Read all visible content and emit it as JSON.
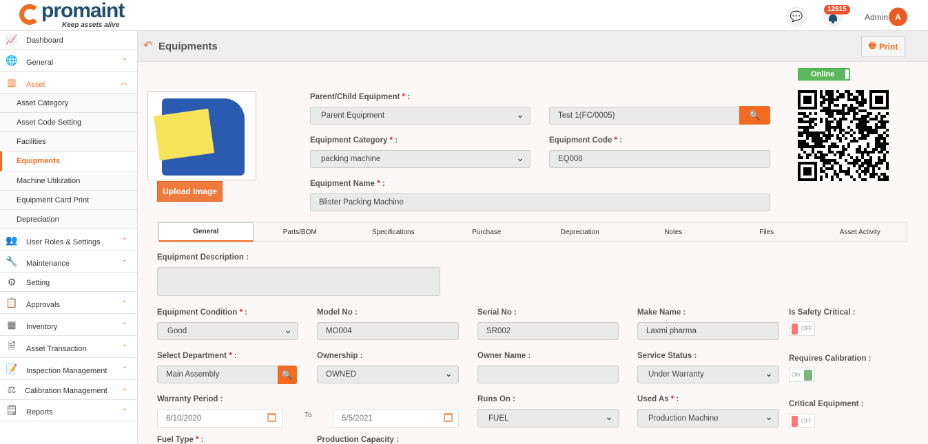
{
  "header": {
    "logo_text": "promaint",
    "logo_tagline": "Keep assets alive",
    "notification_count": "12615",
    "user_name": "Admin",
    "avatar_initial": "A"
  },
  "sidebar": {
    "items": [
      {
        "label": "Dashboard",
        "icon": "chart-icon"
      },
      {
        "label": "General",
        "icon": "globe-icon"
      },
      {
        "label": "Asset",
        "icon": "books-icon",
        "active": true
      },
      {
        "label": "User Roles & Settings",
        "icon": "users-gear-icon"
      },
      {
        "label": "Maintenance",
        "icon": "wrench-icon"
      },
      {
        "label": "Setting",
        "icon": "gear-icon"
      },
      {
        "label": "Approvals",
        "icon": "approval-icon"
      },
      {
        "label": "Inventory",
        "icon": "inventory-icon"
      },
      {
        "label": "Asset Transaction",
        "icon": "transaction-icon"
      },
      {
        "label": "Inspection Management",
        "icon": "inspection-icon"
      },
      {
        "label": "Calibration Management",
        "icon": "scale-icon"
      },
      {
        "label": "Reports",
        "icon": "report-icon"
      }
    ],
    "asset_subitems": [
      "Asset Category",
      "Asset Code Setting",
      "Facilities",
      "Equipments",
      "Machine Utilization",
      "Equipment Card Print",
      "Depreciation"
    ]
  },
  "page": {
    "title": "Equipments",
    "print_label": "Print",
    "status": "Online",
    "upload_label": "Upload Image"
  },
  "form": {
    "parent_child": {
      "label": "Parent/Child Equipment",
      "value": "Parent Equipment"
    },
    "parent_ref": {
      "value": "Test 1(FC/0005)"
    },
    "category": {
      "label": "Equipment Category",
      "value": "packing machine"
    },
    "code": {
      "label": "Equipment Code",
      "value": "EQ008"
    },
    "name": {
      "label": "Equipment Name",
      "value": "Blister Packing Machine"
    }
  },
  "tabs": [
    "General",
    "Parts/BOM",
    "Specifications",
    "Purchase",
    "Depreciation",
    "Notes",
    "Files",
    "Asset Activity"
  ],
  "general": {
    "description": {
      "label": "Equipment Description :",
      "value": ""
    },
    "condition": {
      "label": "Equipment Condition",
      "value": "Good"
    },
    "model": {
      "label": "Model No :",
      "value": "MO004"
    },
    "serial": {
      "label": "Serial No :",
      "value": "SR002"
    },
    "make": {
      "label": "Make Name :",
      "value": "Laxmi pharma"
    },
    "safety": {
      "label": "Is Safety Critical :",
      "state": "OFF"
    },
    "department": {
      "label": "Select Department",
      "value": "Main Assembly"
    },
    "ownership": {
      "label": "Ownership :",
      "value": "OWNED"
    },
    "owner_name": {
      "label": "Owner Name :",
      "value": ""
    },
    "service_status": {
      "label": "Service Status :",
      "value": "Under Warranty"
    },
    "calibration": {
      "label": "Requires Calibration :",
      "state": "ON"
    },
    "warranty": {
      "label": "Warranty Period :",
      "from": "6/10/2020",
      "to_label": "To",
      "to": "5/5/2021"
    },
    "runs_on": {
      "label": "Runs On :",
      "value": "FUEL"
    },
    "used_as": {
      "label": "Used As",
      "value": "Production Machine"
    },
    "critical": {
      "label": "Critical Equipment :",
      "state": "OFF"
    },
    "fuel_type": {
      "label": "Fuel Type"
    },
    "production_capacity": {
      "label": "Production Capacity :"
    }
  },
  "colors": {
    "accent": "#f26b21",
    "online": "#5cb85c",
    "off": "#f77",
    "on": "#7cb87c"
  }
}
